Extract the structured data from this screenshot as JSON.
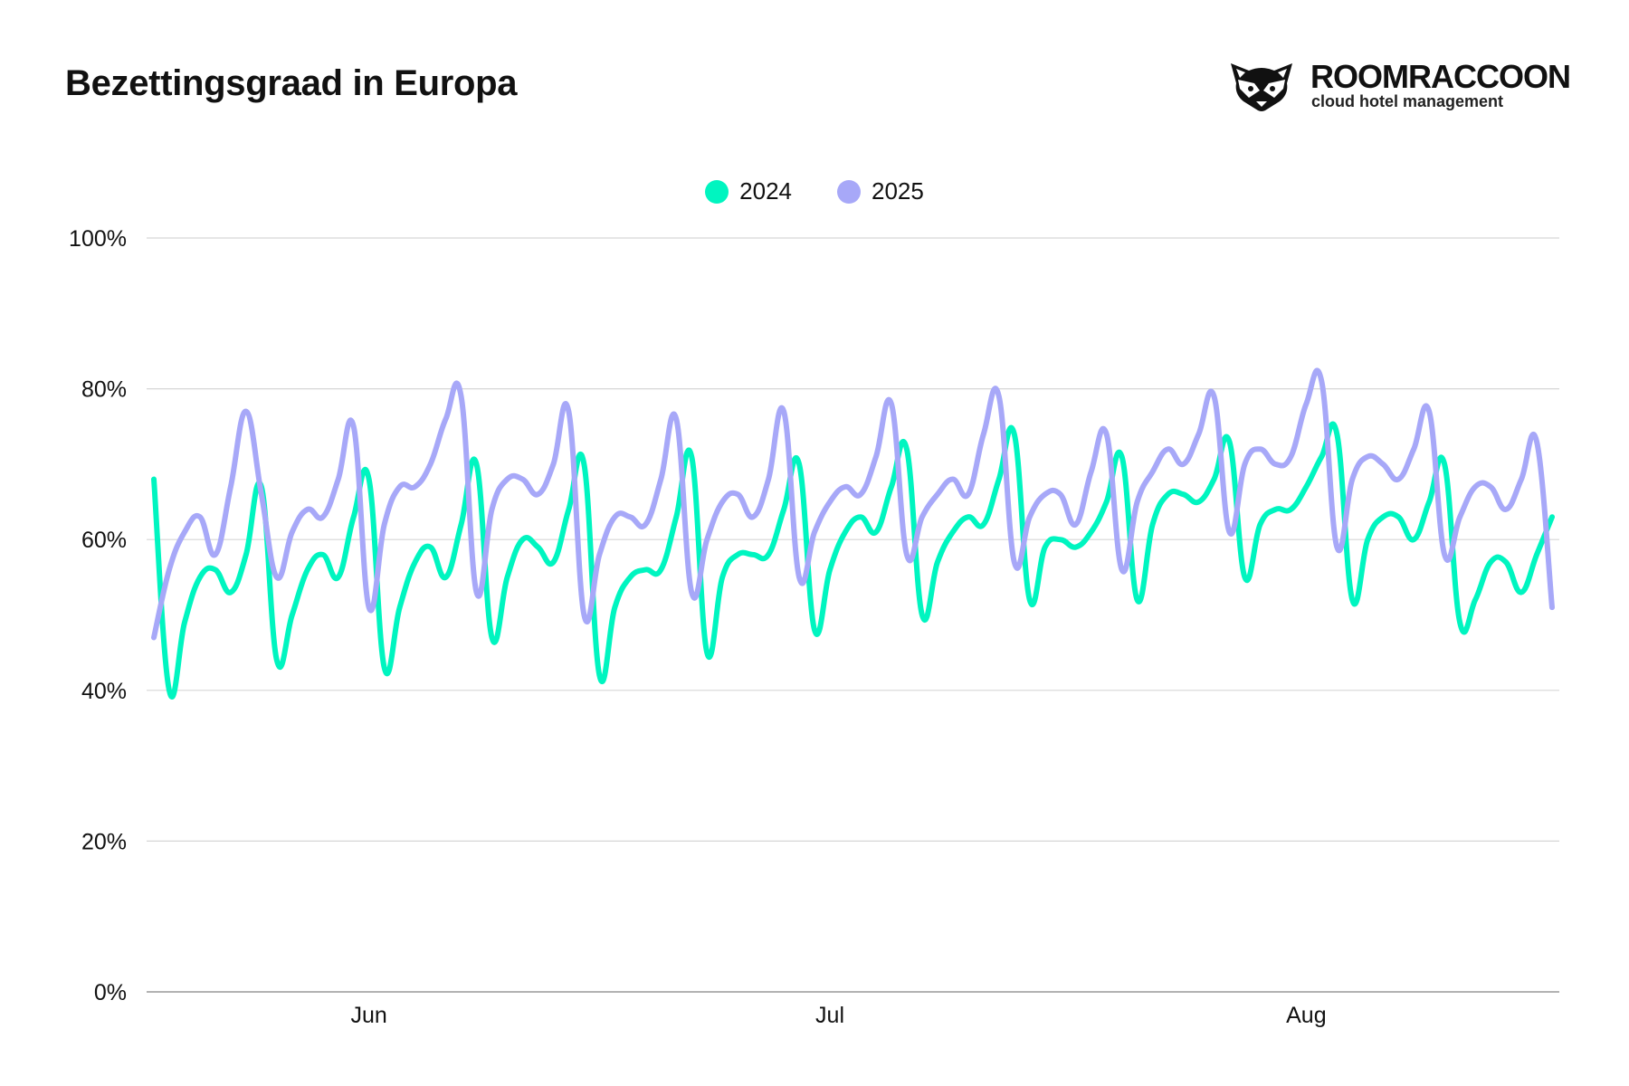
{
  "header": {
    "title": "Bezettingsgraad in Europa"
  },
  "logo": {
    "name": "ROOMRACCOON",
    "tagline": "cloud hotel management",
    "icon": "raccoon-icon"
  },
  "chart_data": {
    "type": "line",
    "title": "Bezettingsgraad in Europa",
    "xlabel": "",
    "ylabel": "",
    "ylim": [
      0,
      100
    ],
    "yticks": [
      "0%",
      "20%",
      "40%",
      "60%",
      "80%",
      "100%"
    ],
    "ytick_values": [
      0,
      20,
      40,
      60,
      80,
      100
    ],
    "xticks": [
      {
        "label": "Jun",
        "date": "Jun 1"
      },
      {
        "label": "Jul",
        "date": "Jul 1"
      },
      {
        "label": "Aug",
        "date": "Aug 1"
      }
    ],
    "grid": "horizontal",
    "legend": "top-center",
    "x": [
      "May 18",
      "May 19",
      "May 20",
      "May 21",
      "May 22",
      "May 23",
      "May 24",
      "May 25",
      "May 26",
      "May 27",
      "May 28",
      "May 29",
      "May 30",
      "May 31",
      "Jun 1",
      "Jun 2",
      "Jun 3",
      "Jun 4",
      "Jun 5",
      "Jun 6",
      "Jun 7",
      "Jun 8",
      "Jun 9",
      "Jun 10",
      "Jun 11",
      "Jun 12",
      "Jun 13",
      "Jun 14",
      "Jun 15",
      "Jun 16",
      "Jun 17",
      "Jun 18",
      "Jun 19",
      "Jun 20",
      "Jun 21",
      "Jun 22",
      "Jun 23",
      "Jun 24",
      "Jun 25",
      "Jun 26",
      "Jun 27",
      "Jun 28",
      "Jun 29",
      "Jun 30",
      "Jul 1",
      "Jul 2",
      "Jul 3",
      "Jul 4",
      "Jul 5",
      "Jul 6",
      "Jul 7",
      "Jul 8",
      "Jul 9",
      "Jul 10",
      "Jul 11",
      "Jul 12",
      "Jul 13",
      "Jul 14",
      "Jul 15",
      "Jul 16",
      "Jul 17",
      "Jul 18",
      "Jul 19",
      "Jul 20",
      "Jul 21",
      "Jul 22",
      "Jul 23",
      "Jul 24",
      "Jul 25",
      "Jul 26",
      "Jul 27",
      "Jul 28",
      "Jul 29",
      "Jul 30",
      "Jul 31",
      "Aug 1",
      "Aug 2",
      "Aug 3",
      "Aug 4",
      "Aug 5",
      "Aug 6",
      "Aug 7",
      "Aug 8",
      "Aug 9",
      "Aug 10",
      "Aug 11",
      "Aug 12",
      "Aug 13",
      "Aug 14",
      "Aug 15",
      "Aug 16",
      "Aug 17"
    ],
    "series": [
      {
        "name": "2024",
        "color": "#00F5C0",
        "values": [
          68,
          40,
          49,
          55,
          56,
          53,
          58,
          67,
          44,
          50,
          56,
          58,
          55,
          63,
          68,
          43,
          51,
          57,
          59,
          55,
          62,
          70,
          47,
          55,
          60,
          59,
          57,
          64,
          70,
          42,
          51,
          55,
          56,
          56,
          63,
          71,
          45,
          55,
          58,
          58,
          58,
          64,
          70,
          48,
          56,
          61,
          63,
          61,
          67,
          72,
          50,
          57,
          61,
          63,
          62,
          68,
          74,
          52,
          59,
          60,
          59,
          61,
          65,
          71,
          52,
          62,
          66,
          66,
          65,
          68,
          73,
          55,
          62,
          64,
          64,
          67,
          71,
          74,
          52,
          60,
          63,
          63,
          60,
          65,
          70,
          49,
          52,
          57,
          57,
          53,
          58,
          63
        ]
      },
      {
        "name": "2025",
        "color": "#A7A8F8",
        "values": [
          47,
          56,
          61,
          63,
          58,
          67,
          77,
          66,
          55,
          61,
          64,
          63,
          68,
          75,
          51,
          62,
          67,
          67,
          70,
          76,
          79,
          53,
          64,
          68,
          68,
          66,
          70,
          77,
          50,
          58,
          63,
          63,
          62,
          68,
          76,
          53,
          60,
          65,
          66,
          63,
          68,
          77,
          55,
          61,
          65,
          67,
          66,
          71,
          78,
          58,
          63,
          66,
          68,
          66,
          74,
          79,
          57,
          63,
          66,
          66,
          62,
          69,
          74,
          56,
          65,
          69,
          72,
          70,
          74,
          79,
          61,
          70,
          72,
          70,
          71,
          78,
          81,
          59,
          68,
          71,
          70,
          68,
          72,
          77,
          58,
          63,
          67,
          67,
          64,
          68,
          73,
          51
        ]
      }
    ]
  }
}
